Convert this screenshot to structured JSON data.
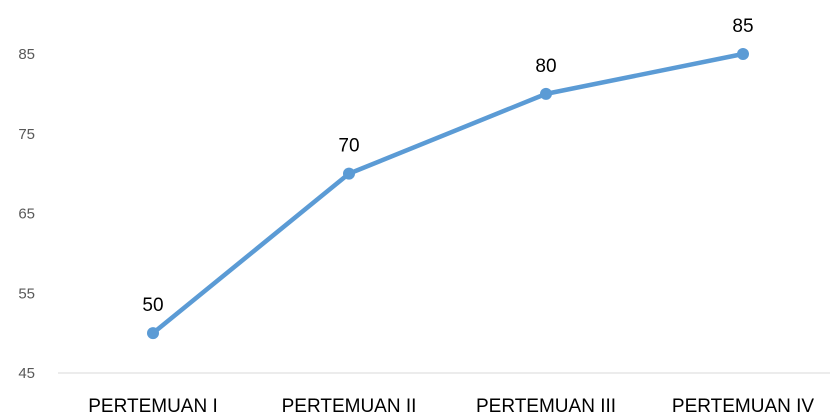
{
  "chart_data": {
    "type": "line",
    "title": "",
    "xlabel": "",
    "ylabel": "",
    "categories": [
      "PERTEMUAN I",
      "PERTEMUAN II",
      "PERTEMUAN III",
      "PERTEMUAN IV"
    ],
    "series": [
      {
        "values": [
          50,
          70,
          80,
          85
        ],
        "color": "#5b9bd5"
      }
    ],
    "ylim": [
      45,
      85
    ],
    "yticks": [
      45,
      55,
      65,
      75,
      85
    ],
    "ytick_labels": [
      "45",
      "55",
      "65",
      "75",
      "85"
    ],
    "data_labels": [
      "50",
      "70",
      "80",
      "85"
    ],
    "grid": false,
    "legend": "none",
    "colors": {
      "axis": "#d9d9d9",
      "tick_text": "#595959",
      "label_text": "#000000"
    }
  }
}
